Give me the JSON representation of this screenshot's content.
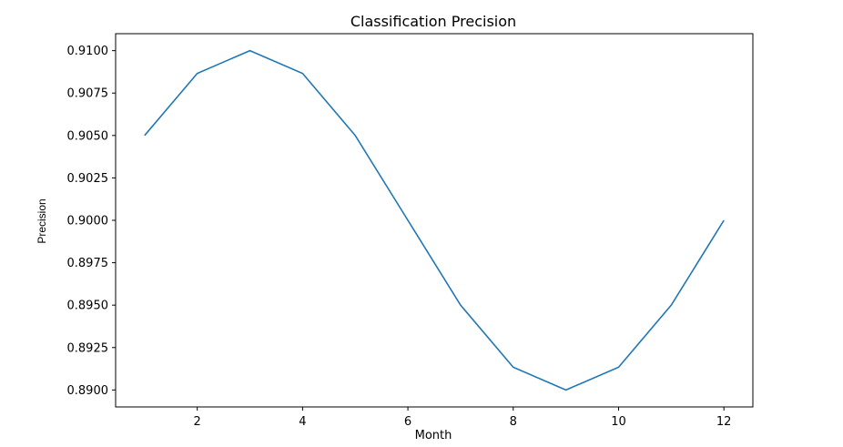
{
  "chart_data": {
    "type": "line",
    "title": "Classification Precision",
    "xlabel": "Month",
    "ylabel": "Precision",
    "x": [
      1,
      2,
      3,
      4,
      5,
      6,
      7,
      8,
      9,
      10,
      11,
      12
    ],
    "series": [
      {
        "values": [
          0.905,
          0.90866,
          0.91,
          0.90866,
          0.905,
          0.9,
          0.895,
          0.89134,
          0.89,
          0.89134,
          0.895,
          0.9
        ]
      }
    ],
    "xlim": [
      0.45,
      12.55
    ],
    "ylim": [
      0.889,
      0.911
    ],
    "x_ticks": [
      "2",
      "4",
      "6",
      "8",
      "10",
      "12"
    ],
    "y_ticks": [
      "0.8900",
      "0.8925",
      "0.8950",
      "0.8975",
      "0.9000",
      "0.9025",
      "0.9050",
      "0.9075",
      "0.9100"
    ],
    "grid": false,
    "line_color": "#1f77b4"
  }
}
